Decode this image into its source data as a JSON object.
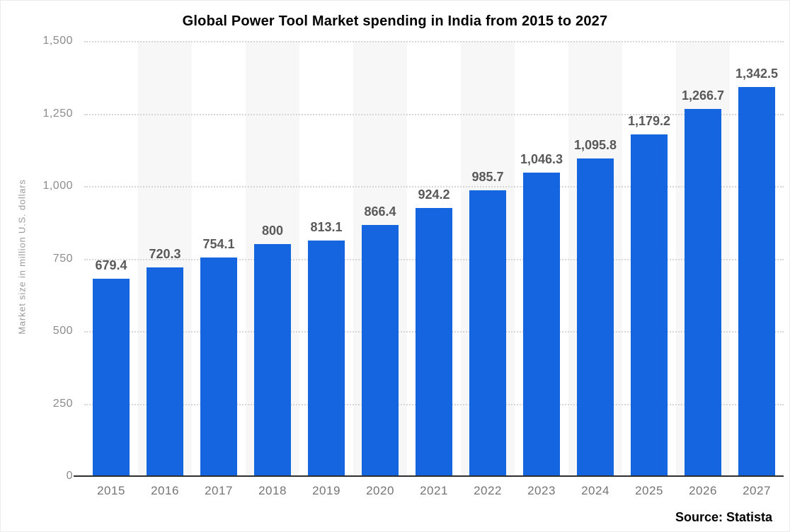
{
  "title": "Global Power Tool Market spending in India from 2015 to 2027",
  "source_label": "Source: Statista",
  "colors": {
    "bar": "#1565e0",
    "stripe": "#f7f7f7",
    "gridline": "#d6d6d6",
    "baseline": "#2e2e2e",
    "value_label": "#595959",
    "tick_label": "#8c8c8c",
    "year_label": "#757575"
  },
  "chart_data": {
    "type": "bar",
    "title": "Global Power Tool Market spending in India from 2015 to 2027",
    "xlabel": "",
    "ylabel": "Market size in million U.S. dollars",
    "categories": [
      "2015",
      "2016",
      "2017",
      "2018",
      "2019",
      "2020",
      "2021",
      "2022",
      "2023",
      "2024",
      "2025",
      "2026",
      "2027"
    ],
    "values": [
      679.4,
      720.3,
      754.1,
      800,
      813.1,
      866.4,
      924.2,
      985.7,
      1046.3,
      1095.8,
      1179.2,
      1266.7,
      1342.5
    ],
    "value_labels": [
      "679.4",
      "720.3",
      "754.1",
      "800",
      "813.1",
      "866.4",
      "924.2",
      "985.7",
      "1,046.3",
      "1,095.8",
      "1,179.2",
      "1,266.7",
      "1,342.5"
    ],
    "ylim": [
      0,
      1500
    ],
    "yticks": [
      0,
      250,
      500,
      750,
      1000,
      1250,
      1500
    ],
    "ytick_labels": [
      "0",
      "250",
      "500",
      "750",
      "1,000",
      "1,250",
      "1,500"
    ],
    "grid": "horizontal-dotted",
    "background_stripes": "alternating vertical column bands",
    "legend": "none",
    "source": "Statista"
  }
}
